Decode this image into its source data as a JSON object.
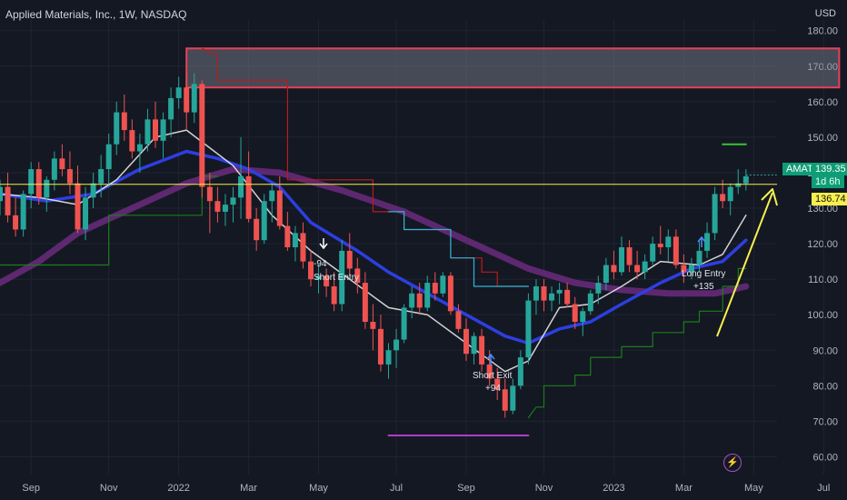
{
  "header": {
    "title": "Applied Materials, Inc., 1W, NASDAQ",
    "currency": "USD"
  },
  "price_tags": {
    "symbol": "AMAT",
    "last_price": "139.35",
    "countdown": "1d 6h",
    "level": "136.74"
  },
  "annotations": {
    "short_entry_value": "-94",
    "short_entry_label": "Short Entry",
    "short_exit_label": "Short Exit",
    "short_exit_value": "+94",
    "long_entry_label": "Long Entry",
    "long_entry_value": "+135"
  },
  "icons": {
    "alert": "lightning-icon"
  },
  "colors": {
    "background": "#141823",
    "up_candle": "#26a69a",
    "down_candle": "#ef5350",
    "sma_short": "#e8e8e8",
    "sma_mid": "#2d3fe0",
    "sma_long": "#6a2c7e",
    "stop_red": "#b71c1c",
    "stop_cyan": "#29b6d6",
    "stop_green": "#1b7d1b",
    "level_line": "#f7ef4e",
    "resistance_zone": "#e84057",
    "target_line": "#38c238",
    "low_line": "#b23bc8",
    "arrow": "#f7ef4e"
  },
  "chart_data": {
    "type": "candlestick",
    "y_axis": {
      "min": 55,
      "max": 183,
      "ticks": [
        60,
        70,
        80,
        90,
        100,
        110,
        120,
        130,
        140,
        150,
        160,
        170,
        180
      ],
      "tick_labels": [
        "60.00",
        "70.00",
        "80.00",
        "90.00",
        "100.00",
        "110.00",
        "120.00",
        "130.00",
        "140.00",
        "150.00",
        "160.00",
        "170.00",
        "180.00"
      ]
    },
    "x_axis": {
      "min": 0,
      "max": 100,
      "tick_labels": [
        "Sep",
        "Nov",
        "2022",
        "Mar",
        "May",
        "Jul",
        "Sep",
        "Nov",
        "2023",
        "Mar",
        "May",
        "Jul"
      ],
      "tick_positions": [
        4,
        14,
        23,
        32,
        41,
        51,
        60,
        70,
        79,
        88,
        97,
        106
      ]
    },
    "candles": [
      [
        0,
        132,
        138,
        128,
        136
      ],
      [
        1,
        136,
        140,
        126,
        128
      ],
      [
        2,
        128,
        133,
        122,
        124
      ],
      [
        3,
        124,
        135,
        122,
        134
      ],
      [
        4,
        134,
        143,
        130,
        141
      ],
      [
        5,
        141,
        143,
        131,
        133
      ],
      [
        6,
        133,
        139,
        129,
        138
      ],
      [
        7,
        138,
        146,
        135,
        144
      ],
      [
        8,
        144,
        148,
        139,
        141
      ],
      [
        9,
        141,
        146,
        134,
        137
      ],
      [
        10,
        137,
        142,
        123,
        124
      ],
      [
        11,
        124,
        136,
        121,
        133
      ],
      [
        12,
        133,
        140,
        130,
        137
      ],
      [
        13,
        137,
        145,
        133,
        141
      ],
      [
        14,
        141,
        151,
        136,
        148
      ],
      [
        15,
        148,
        160,
        145,
        157
      ],
      [
        16,
        157,
        162,
        149,
        152
      ],
      [
        17,
        152,
        155,
        144,
        146
      ],
      [
        18,
        146,
        151,
        140,
        148
      ],
      [
        19,
        148,
        158,
        146,
        155
      ],
      [
        20,
        155,
        160,
        147,
        149
      ],
      [
        21,
        149,
        157,
        144,
        155
      ],
      [
        22,
        155,
        164,
        150,
        161
      ],
      [
        23,
        161,
        167,
        158,
        164
      ],
      [
        24,
        164,
        168,
        152,
        157
      ],
      [
        25,
        157,
        168,
        154,
        165
      ],
      [
        26,
        165,
        166,
        133,
        136
      ],
      [
        27,
        136,
        140,
        123,
        132
      ],
      [
        28,
        132,
        136,
        126,
        129
      ],
      [
        29,
        129,
        134,
        125,
        131
      ],
      [
        30,
        131,
        136,
        126,
        133
      ],
      [
        31,
        133,
        150,
        127,
        139
      ],
      [
        32,
        139,
        146,
        126,
        127
      ],
      [
        33,
        127,
        130,
        118,
        121
      ],
      [
        34,
        121,
        134,
        120,
        132
      ],
      [
        35,
        132,
        137,
        126,
        135
      ],
      [
        36,
        135,
        139,
        124,
        125
      ],
      [
        37,
        125,
        129,
        118,
        119
      ],
      [
        38,
        119,
        125,
        115,
        123
      ],
      [
        39,
        123,
        126,
        113,
        115
      ],
      [
        40,
        115,
        118,
        108,
        110
      ],
      [
        41,
        110,
        114,
        106,
        111
      ],
      [
        42,
        111,
        113,
        105,
        108
      ],
      [
        43,
        108,
        112,
        101,
        103
      ],
      [
        44,
        103,
        121,
        101,
        118
      ],
      [
        45,
        118,
        123,
        111,
        113
      ],
      [
        46,
        113,
        116,
        106,
        109
      ],
      [
        47,
        109,
        112,
        96,
        98
      ],
      [
        48,
        98,
        103,
        90,
        96
      ],
      [
        49,
        96,
        100,
        84,
        86
      ],
      [
        50,
        86,
        92,
        82,
        90
      ],
      [
        51,
        90,
        96,
        85,
        93
      ],
      [
        52,
        93,
        103,
        92,
        102
      ],
      [
        53,
        102,
        108,
        99,
        106
      ],
      [
        54,
        106,
        109,
        100,
        102
      ],
      [
        55,
        102,
        111,
        101,
        109
      ],
      [
        56,
        109,
        112,
        104,
        106
      ],
      [
        57,
        106,
        112,
        105,
        111
      ],
      [
        58,
        111,
        112,
        100,
        101
      ],
      [
        59,
        101,
        103,
        95,
        96
      ],
      [
        60,
        96,
        99,
        87,
        89
      ],
      [
        61,
        89,
        95,
        86,
        94
      ],
      [
        62,
        94,
        96,
        84,
        86
      ],
      [
        63,
        86,
        90,
        80,
        82
      ],
      [
        64,
        82,
        85,
        76,
        79
      ],
      [
        65,
        79,
        82,
        71,
        73
      ],
      [
        66,
        73,
        82,
        72,
        80
      ],
      [
        67,
        80,
        90,
        79,
        88
      ],
      [
        68,
        88,
        106,
        86,
        104
      ],
      [
        69,
        104,
        110,
        100,
        108
      ],
      [
        70,
        108,
        110,
        101,
        104
      ],
      [
        71,
        104,
        108,
        101,
        106
      ],
      [
        72,
        106,
        109,
        103,
        107
      ],
      [
        73,
        107,
        109,
        102,
        103
      ],
      [
        74,
        103,
        105,
        96,
        98
      ],
      [
        75,
        98,
        102,
        94,
        101
      ],
      [
        76,
        101,
        107,
        100,
        106
      ],
      [
        77,
        106,
        111,
        103,
        109
      ],
      [
        78,
        109,
        116,
        107,
        114
      ],
      [
        79,
        114,
        118,
        110,
        112
      ],
      [
        80,
        112,
        122,
        111,
        119
      ],
      [
        81,
        119,
        121,
        112,
        114
      ],
      [
        82,
        114,
        118,
        110,
        112
      ],
      [
        83,
        112,
        117,
        110,
        115
      ],
      [
        84,
        115,
        122,
        114,
        120
      ],
      [
        85,
        120,
        125,
        117,
        119
      ],
      [
        86,
        119,
        124,
        115,
        122
      ],
      [
        87,
        122,
        124,
        113,
        114
      ],
      [
        88,
        114,
        117,
        109,
        112
      ],
      [
        89,
        112,
        116,
        110,
        114
      ],
      [
        90,
        114,
        121,
        112,
        118
      ],
      [
        91,
        118,
        126,
        116,
        123
      ],
      [
        92,
        123,
        136,
        121,
        134
      ],
      [
        93,
        134,
        138,
        130,
        132
      ],
      [
        94,
        132,
        137,
        128,
        136
      ],
      [
        95,
        136,
        141,
        134,
        137
      ],
      [
        96,
        137,
        141,
        135,
        139
      ]
    ],
    "series": [
      {
        "type": "line",
        "values": [
          [
            0,
            134
          ],
          [
            5,
            133
          ],
          [
            10,
            131
          ],
          [
            15,
            138
          ],
          [
            20,
            150
          ],
          [
            24,
            152
          ],
          [
            30,
            142
          ],
          [
            35,
            128
          ],
          [
            40,
            118
          ],
          [
            45,
            110
          ],
          [
            50,
            102
          ],
          [
            55,
            100
          ],
          [
            60,
            92
          ],
          [
            65,
            84
          ],
          [
            68,
            87
          ],
          [
            72,
            102
          ],
          [
            76,
            103
          ],
          [
            80,
            108
          ],
          [
            85,
            115
          ],
          [
            90,
            114
          ],
          [
            93,
            117
          ],
          [
            96,
            128
          ]
        ]
      },
      {
        "type": "line",
        "values": [
          [
            0,
            134
          ],
          [
            6,
            132
          ],
          [
            12,
            134
          ],
          [
            18,
            141
          ],
          [
            24,
            146
          ],
          [
            28,
            144
          ],
          [
            32,
            141
          ],
          [
            36,
            136
          ],
          [
            40,
            126
          ],
          [
            46,
            118
          ],
          [
            50,
            112
          ],
          [
            55,
            106
          ],
          [
            60,
            100
          ],
          [
            65,
            94
          ],
          [
            68,
            92
          ],
          [
            72,
            96
          ],
          [
            76,
            98
          ],
          [
            80,
            103
          ],
          [
            85,
            109
          ],
          [
            89,
            113
          ],
          [
            93,
            115
          ],
          [
            96,
            121
          ]
        ]
      },
      {
        "type": "line",
        "values": [
          [
            0,
            109
          ],
          [
            5,
            115
          ],
          [
            10,
            123
          ],
          [
            15,
            128
          ],
          [
            20,
            133
          ],
          [
            24,
            137
          ],
          [
            30,
            141
          ],
          [
            36,
            140
          ],
          [
            44,
            135
          ],
          [
            52,
            129
          ],
          [
            58,
            123
          ],
          [
            64,
            117
          ],
          [
            68,
            113
          ],
          [
            74,
            109
          ],
          [
            80,
            107
          ],
          [
            86,
            106
          ],
          [
            92,
            106
          ],
          [
            96,
            108
          ]
        ]
      },
      {
        "type": "line",
        "values": [
          [
            26,
            175
          ],
          [
            28,
            173
          ],
          [
            28,
            166
          ],
          [
            37,
            166
          ],
          [
            37,
            138
          ],
          [
            48,
            138
          ],
          [
            48,
            129
          ],
          [
            52,
            129
          ],
          [
            52,
            124
          ],
          [
            58,
            124
          ],
          [
            58,
            116
          ],
          [
            62,
            116
          ],
          [
            62,
            112
          ],
          [
            64,
            112
          ],
          [
            64,
            108
          ],
          [
            68,
            108
          ]
        ]
      },
      {
        "type": "line",
        "values": [
          [
            50,
            129
          ],
          [
            52,
            129
          ],
          [
            52,
            124
          ],
          [
            58,
            124
          ],
          [
            58,
            116
          ],
          [
            61,
            116
          ],
          [
            61,
            108
          ],
          [
            68,
            108
          ]
        ]
      },
      {
        "type": "line",
        "values": [
          [
            0,
            114
          ],
          [
            14,
            114
          ],
          [
            14,
            128
          ],
          [
            26,
            128
          ],
          [
            26,
            139
          ],
          [
            28,
            139
          ]
        ]
      },
      {
        "type": "line",
        "values": [
          [
            68,
            71
          ],
          [
            69,
            74
          ],
          [
            70,
            74
          ],
          [
            70,
            80
          ],
          [
            74,
            80
          ],
          [
            74,
            83
          ],
          [
            76,
            83
          ],
          [
            76,
            88
          ],
          [
            80,
            88
          ],
          [
            80,
            91
          ],
          [
            84,
            91
          ],
          [
            84,
            95
          ],
          [
            88,
            95
          ],
          [
            88,
            98
          ],
          [
            90,
            98
          ],
          [
            90,
            101
          ],
          [
            93,
            101
          ],
          [
            93,
            108
          ],
          [
            95,
            108
          ],
          [
            95,
            113
          ],
          [
            96,
            113
          ]
        ]
      },
      {
        "type": "line",
        "values": [
          [
            0,
            136.74
          ],
          [
            100,
            136.74
          ]
        ]
      },
      {
        "type": "line",
        "values": [
          [
            50,
            66
          ],
          [
            68,
            66
          ]
        ]
      },
      {
        "type": "line",
        "values": [
          [
            93,
            148
          ],
          [
            96,
            148
          ]
        ]
      }
    ],
    "zones": [
      {
        "x": [
          24,
          108
        ],
        "y": [
          164,
          175
        ]
      }
    ]
  }
}
